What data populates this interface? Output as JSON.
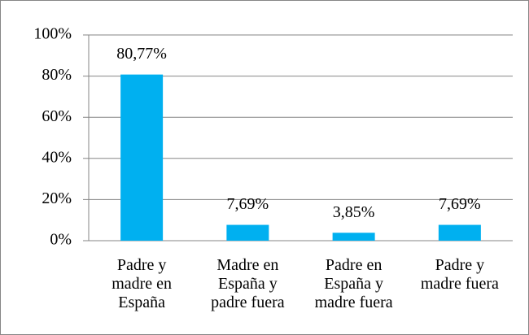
{
  "chart_data": {
    "type": "bar",
    "categories": [
      "Padre y madre en España",
      "Madre en España y padre fuera",
      "Padre en España y madre fuera",
      "Padre y madre fuera"
    ],
    "values": [
      80.77,
      7.69,
      3.85,
      7.69
    ],
    "value_labels": [
      "80,77%",
      "7,69%",
      "3,85%",
      "7,69%"
    ],
    "color": "#00b0f0",
    "ylim": [
      0,
      100
    ],
    "yticks": [
      {
        "value": 0,
        "label": "0%"
      },
      {
        "value": 20,
        "label": "20%"
      },
      {
        "value": 40,
        "label": "40%"
      },
      {
        "value": 60,
        "label": "60%"
      },
      {
        "value": 80,
        "label": "80%"
      },
      {
        "value": 100,
        "label": "100%"
      }
    ],
    "grid": true
  }
}
